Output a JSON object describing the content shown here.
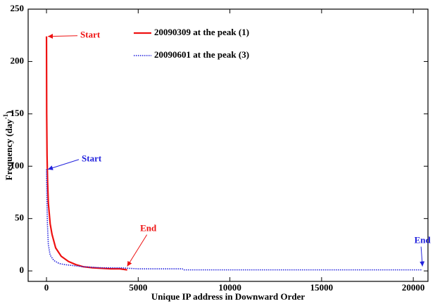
{
  "chart_data": {
    "type": "line",
    "xlabel": "Unique IP address in Downward Order",
    "ylabel": [
      "Frequency (day",
      "-1",
      ")"
    ],
    "xlim": [
      -1000,
      20800
    ],
    "ylim": [
      -10,
      250
    ],
    "xticks": [
      0,
      5000,
      10000,
      15000,
      20000
    ],
    "yticks": [
      0,
      50,
      100,
      150,
      200,
      250
    ],
    "grid": false,
    "annotations": [
      "Start",
      "End",
      "Start",
      "End"
    ],
    "series": [
      {
        "name": "20090309 at the peak (1)",
        "color": "#ee1111",
        "style": "solid",
        "x": [
          0,
          10,
          30,
          60,
          100,
          200,
          300,
          500,
          800,
          1200,
          1600,
          2000,
          2500,
          3000,
          3500,
          4000,
          4400
        ],
        "values": [
          224,
          150,
          110,
          85,
          65,
          45,
          35,
          22,
          14,
          9,
          6,
          4,
          3,
          2.5,
          2,
          2,
          1
        ]
      },
      {
        "name": "20090601 at the peak (3)",
        "color": "#2222dd",
        "style": "dotted",
        "x": [
          0,
          20,
          50,
          100,
          200,
          400,
          700,
          1000,
          1500,
          2000,
          3000,
          4000,
          5000,
          7400,
          7500,
          10000,
          15000,
          20500
        ],
        "values": [
          97,
          70,
          45,
          25,
          15,
          10,
          7,
          6,
          5,
          4,
          3,
          3,
          2,
          2,
          1,
          1,
          1,
          1
        ]
      }
    ]
  }
}
